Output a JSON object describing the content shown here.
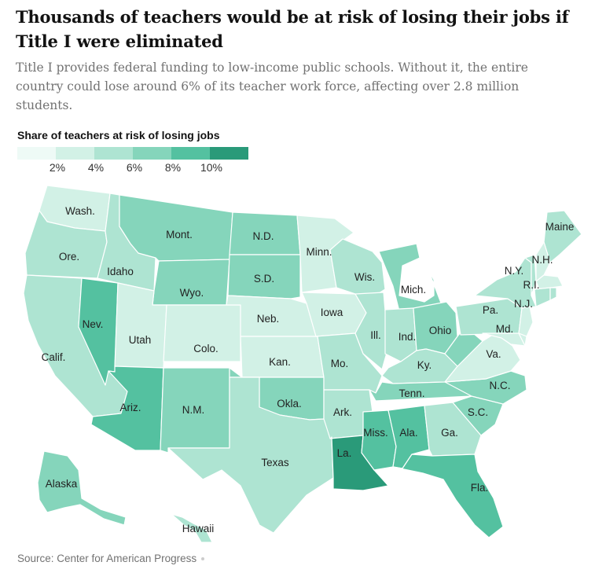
{
  "header": {
    "title": "Thousands of teachers would be at risk of losing their jobs if Title I were eliminated",
    "subtitle": "Title I provides federal funding to low-income public schools. Without it, the entire country could lose around 6% of its teacher work force, affecting over 2.8 million students."
  },
  "legend": {
    "title": "Share of teachers at risk of losing jobs",
    "colors": [
      "#eefaf6",
      "#d2f1e6",
      "#aee4d2",
      "#85d5bb",
      "#54c1a0",
      "#2a9a79"
    ],
    "ticks": [
      "2%",
      "4%",
      "6%",
      "8%",
      "10%"
    ]
  },
  "source": "Source: Center for American Progress",
  "map": {
    "states": [
      {
        "id": "WA",
        "label": "Wash.",
        "tier": 1
      },
      {
        "id": "OR",
        "label": "Ore.",
        "tier": 2
      },
      {
        "id": "CA",
        "label": "Calif.",
        "tier": 2
      },
      {
        "id": "NV",
        "label": "Nev.",
        "tier": 4
      },
      {
        "id": "ID",
        "label": "Idaho",
        "tier": 2
      },
      {
        "id": "MT",
        "label": "Mont.",
        "tier": 3
      },
      {
        "id": "WY",
        "label": "Wyo.",
        "tier": 3
      },
      {
        "id": "UT",
        "label": "Utah",
        "tier": 1
      },
      {
        "id": "CO",
        "label": "Colo.",
        "tier": 1
      },
      {
        "id": "AZ",
        "label": "Ariz.",
        "tier": 4
      },
      {
        "id": "NM",
        "label": "N.M.",
        "tier": 3
      },
      {
        "id": "ND",
        "label": "N.D.",
        "tier": 3
      },
      {
        "id": "SD",
        "label": "S.D.",
        "tier": 3
      },
      {
        "id": "NE",
        "label": "Neb.",
        "tier": 1
      },
      {
        "id": "KS",
        "label": "Kan.",
        "tier": 1
      },
      {
        "id": "OK",
        "label": "Okla.",
        "tier": 3
      },
      {
        "id": "TX",
        "label": "Texas",
        "tier": 2
      },
      {
        "id": "MN",
        "label": "Minn.",
        "tier": 1
      },
      {
        "id": "IA",
        "label": "Iowa",
        "tier": 1
      },
      {
        "id": "MO",
        "label": "Mo.",
        "tier": 2
      },
      {
        "id": "AR",
        "label": "Ark.",
        "tier": 2
      },
      {
        "id": "LA",
        "label": "La.",
        "tier": 5
      },
      {
        "id": "WI",
        "label": "Wis.",
        "tier": 2
      },
      {
        "id": "IL",
        "label": "Ill.",
        "tier": 2
      },
      {
        "id": "MI",
        "label": "Mich.",
        "tier": 3
      },
      {
        "id": "IN",
        "label": "Ind.",
        "tier": 2
      },
      {
        "id": "OH",
        "label": "Ohio",
        "tier": 3
      },
      {
        "id": "KY",
        "label": "Ky.",
        "tier": 2
      },
      {
        "id": "TN",
        "label": "Tenn.",
        "tier": 3
      },
      {
        "id": "MS",
        "label": "Miss.",
        "tier": 4
      },
      {
        "id": "AL",
        "label": "Ala.",
        "tier": 4
      },
      {
        "id": "GA",
        "label": "Ga.",
        "tier": 2
      },
      {
        "id": "FL",
        "label": "Fla.",
        "tier": 4
      },
      {
        "id": "SC",
        "label": "S.C.",
        "tier": 3
      },
      {
        "id": "NC",
        "label": "N.C.",
        "tier": 3
      },
      {
        "id": "VA",
        "label": "Va.",
        "tier": 1
      },
      {
        "id": "WV",
        "label": "",
        "tier": 3
      },
      {
        "id": "PA",
        "label": "Pa.",
        "tier": 2
      },
      {
        "id": "NY",
        "label": "N.Y.",
        "tier": 2
      },
      {
        "id": "ME",
        "label": "Maine",
        "tier": 2
      },
      {
        "id": "VT",
        "label": "",
        "tier": 2
      },
      {
        "id": "NH",
        "label": "N.H.",
        "tier": 1
      },
      {
        "id": "MA",
        "label": "",
        "tier": 1
      },
      {
        "id": "CT",
        "label": "",
        "tier": 2
      },
      {
        "id": "RI",
        "label": "R.I.",
        "tier": 2
      },
      {
        "id": "NJ",
        "label": "N.J.",
        "tier": 1
      },
      {
        "id": "MD",
        "label": "Md.",
        "tier": 1
      },
      {
        "id": "DE",
        "label": "",
        "tier": 1
      },
      {
        "id": "AK",
        "label": "Alaska",
        "tier": 3
      },
      {
        "id": "HI",
        "label": "Hawaii",
        "tier": 2
      }
    ]
  }
}
